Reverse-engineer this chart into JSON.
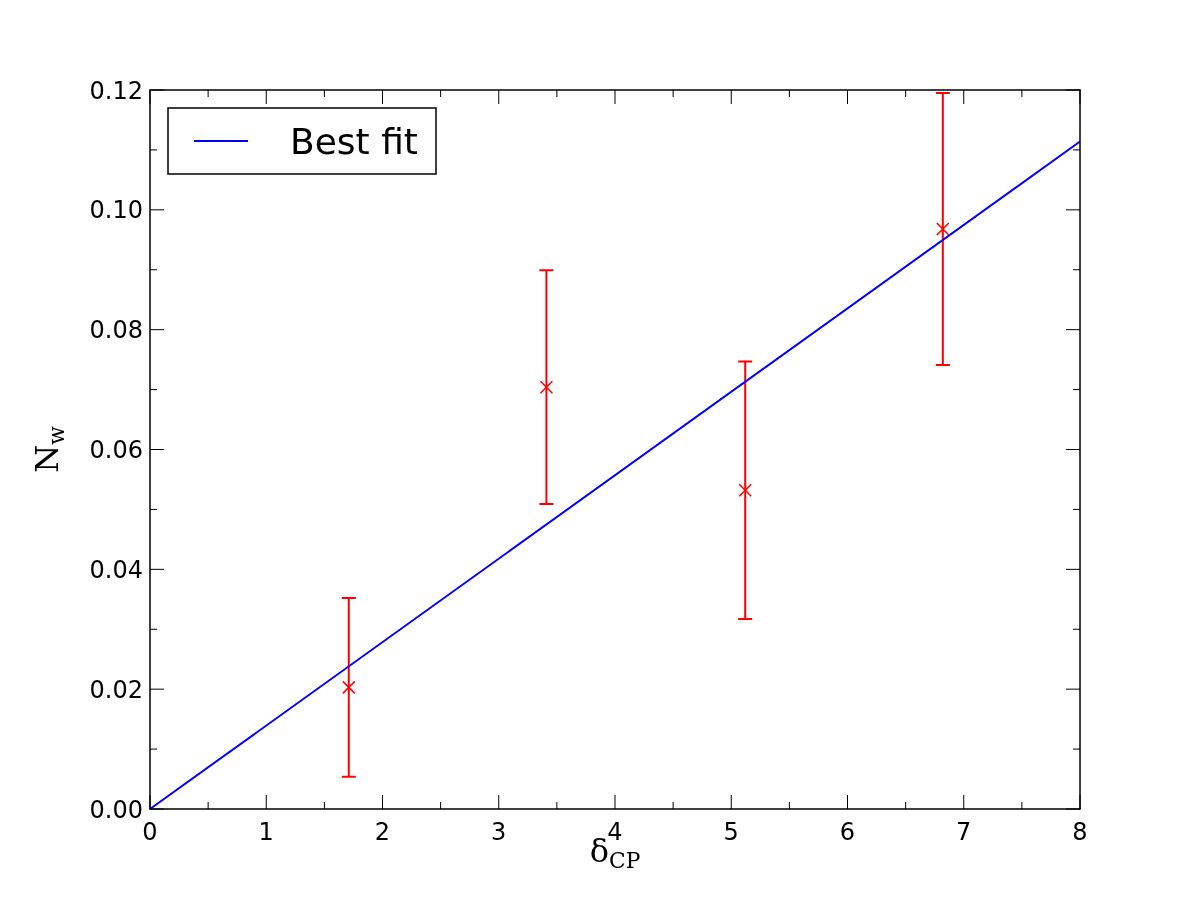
{
  "chart_data": {
    "type": "scatter",
    "xlabel": "δ$_{CP}$",
    "ylabel": "N$_{w}$",
    "xlim": [
      0,
      8
    ],
    "xticks": [
      0,
      {
        "value": 0.5,
        "label": null
      },
      1,
      {
        "value": 1.5,
        "label": null
      },
      2,
      {
        "value": 2.5,
        "label": null
      },
      3,
      {
        "value": 3.5,
        "label": null
      },
      4,
      {
        "value": 4.5,
        "label": null
      },
      5,
      {
        "value": 5.5,
        "label": null
      },
      6,
      {
        "value": 6.5,
        "label": null
      },
      7,
      {
        "value": 7.5,
        "label": null
      },
      8
    ],
    "ylim": [
      0,
      0.12
    ],
    "yticks": [
      {
        "value": 0,
        "label": "0.00"
      },
      {
        "value": 0.01,
        "label": null
      },
      0.02,
      {
        "value": 0.03,
        "label": null
      },
      0.04,
      {
        "value": 0.05,
        "label": null
      },
      0.06,
      {
        "value": 0.07,
        "label": null
      },
      0.08,
      {
        "value": 0.09,
        "label": null
      },
      {
        "value": 0.1,
        "label": "0.10"
      },
      {
        "value": 0.11,
        "label": null
      },
      0.12
    ],
    "legend": "top left",
    "series": [
      {
        "color": "#ff0000",
        "marker": "cross",
        "x": [
          1.71,
          3.41,
          5.12,
          6.82
        ],
        "values": [
          0.0203,
          0.0704,
          0.0532,
          0.0968
        ],
        "errors": [
          0.0149,
          0.0195,
          0.0215,
          0.0227
        ]
      },
      {
        "type": "line",
        "name": "Best fit",
        "color": "#0000ff",
        "x": [
          0,
          8
        ],
        "values": [
          0,
          0.1114
        ]
      }
    ]
  }
}
